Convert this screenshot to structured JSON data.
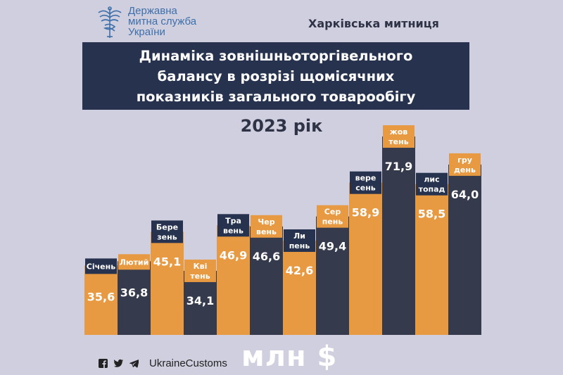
{
  "header": {
    "org_name": "Державна митна служба України",
    "org_lines": [
      "Державна",
      "митна служба",
      "України"
    ],
    "customs_office": "Харківська митниця",
    "title_lines": [
      "Динаміка зовнішньоторгівельного",
      "балансу в розрізі щомісячних",
      "показників загального товарообігу"
    ],
    "year": "2023 рік"
  },
  "colors": {
    "orange": "#e79a42",
    "navy": "#353b4d",
    "label_bg": "#27334e",
    "background": "#cfcfe0"
  },
  "chart_data": {
    "type": "bar",
    "title": "Динаміка зовнішньоторгівельного балансу в розрізі щомісячних показників загального товарообігу",
    "subtitle": "2023 рік",
    "unit": "млн $",
    "categories": [
      "Січень",
      "Лютий",
      "Березень",
      "Квітень",
      "Травень",
      "Червень",
      "Липень",
      "Серпень",
      "Вересень",
      "Жовтень",
      "Листопад",
      "Грудень"
    ],
    "category_labels": [
      [
        "Січень"
      ],
      [
        "Лютий"
      ],
      [
        "Бере",
        "зень"
      ],
      [
        "Кві",
        "тень"
      ],
      [
        "Тра",
        "вень"
      ],
      [
        "Чер",
        "вень"
      ],
      [
        "Ли",
        "пень"
      ],
      [
        "Сер",
        "пень"
      ],
      [
        "вере",
        "сень"
      ],
      [
        "жов",
        "тень"
      ],
      [
        "лис",
        "топад"
      ],
      [
        "гру",
        "день"
      ]
    ],
    "values": [
      35.6,
      36.8,
      45.1,
      34.1,
      46.9,
      46.6,
      42.6,
      49.4,
      58.9,
      71.9,
      58.5,
      64.0
    ],
    "value_labels": [
      "35,6",
      "36,8",
      "45,1",
      "34,1",
      "46,9",
      "46,6",
      "42,6",
      "49,4",
      "58,9",
      "71,9",
      "58,5",
      "64,0"
    ],
    "ylim": [
      0,
      80
    ],
    "grid": false,
    "legend": "none"
  },
  "footer": {
    "icons": [
      "facebook-icon",
      "twitter-icon",
      "telegram-icon"
    ],
    "handle": "UkraineCustoms",
    "unit": "млн $"
  }
}
